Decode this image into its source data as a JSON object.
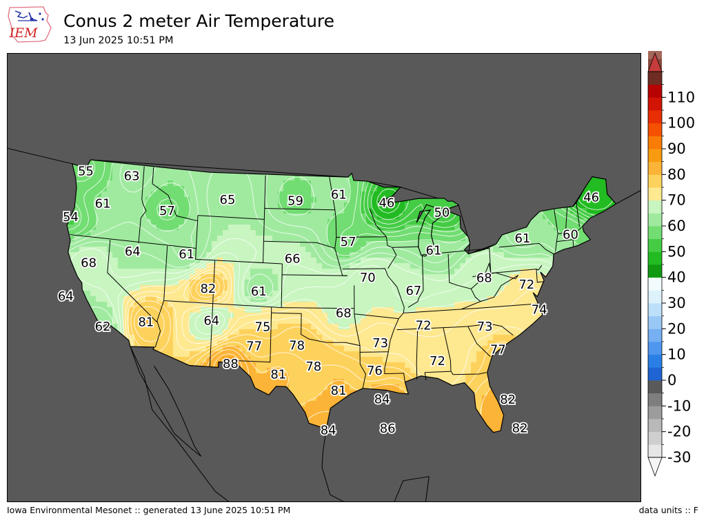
{
  "header": {
    "logo_text": "IEM",
    "title": "Conus 2 meter Air Temperature",
    "subtitle": "13 Jun 2025 10:51 PM"
  },
  "footer": {
    "left": "Iowa Environmental Mesonet :: generated 13 June 2025 10:51 PM",
    "right": "data units :: F"
  },
  "colorbar": {
    "ticks": [
      "110",
      "100",
      "90",
      "80",
      "70",
      "60",
      "50",
      "40",
      "30",
      "20",
      "10",
      "0",
      "-10",
      "-20",
      "-30"
    ],
    "min": -30,
    "max": 120,
    "step": 5,
    "colors": [
      "#e6e6e6",
      "#cfcfcf",
      "#b9b9b9",
      "#9c9c9c",
      "#7e7e7e",
      "#5a5a5a",
      "#1e64d2",
      "#2a7fe6",
      "#4f96ee",
      "#76aff2",
      "#9ac8f6",
      "#bde0fa",
      "#def2fc",
      "#f2fcff",
      "#119a11",
      "#22bb22",
      "#45cc45",
      "#72dd72",
      "#a0eaa0",
      "#c8f5c0",
      "#fee890",
      "#fdd25c",
      "#fbb437",
      "#f99b10",
      "#f97c07",
      "#f55000",
      "#e82e03",
      "#d11404",
      "#b80202",
      "#6e2c23",
      "#8a4a3c",
      "#a5675a",
      "#c28a80",
      "#e3bcb4",
      "#f6d8d2",
      "#fcc8c8",
      "#f6a2a2",
      "#e06a6a",
      "#c43c3c"
    ]
  },
  "map": {
    "background_color": "#595959",
    "labels": [
      {
        "value": "55",
        "lon": -123.2,
        "lat": 47.9
      },
      {
        "value": "63",
        "lon": -118.3,
        "lat": 48.0
      },
      {
        "value": "61",
        "lon": -121.1,
        "lat": 45.2
      },
      {
        "value": "54",
        "lon": -124.3,
        "lat": 43.6
      },
      {
        "value": "57",
        "lon": -114.3,
        "lat": 45.2
      },
      {
        "value": "65",
        "lon": -108.0,
        "lat": 46.6
      },
      {
        "value": "59",
        "lon": -100.8,
        "lat": 46.8
      },
      {
        "value": "61",
        "lon": -96.2,
        "lat": 47.4
      },
      {
        "value": "46",
        "lon": -91.1,
        "lat": 46.6
      },
      {
        "value": "50",
        "lon": -85.3,
        "lat": 45.5
      },
      {
        "value": "46",
        "lon": -69.5,
        "lat": 45.6
      },
      {
        "value": "64",
        "lon": -117.6,
        "lat": 41.2
      },
      {
        "value": "61",
        "lon": -112.0,
        "lat": 41.4
      },
      {
        "value": "66",
        "lon": -101.0,
        "lat": 41.5
      },
      {
        "value": "57",
        "lon": -95.2,
        "lat": 43.1
      },
      {
        "value": "61",
        "lon": -86.3,
        "lat": 42.1
      },
      {
        "value": "61",
        "lon": -77.0,
        "lat": 42.6
      },
      {
        "value": "60",
        "lon": -72.0,
        "lat": 42.5
      },
      {
        "value": "68",
        "lon": -122.0,
        "lat": 39.7
      },
      {
        "value": "82",
        "lon": -109.6,
        "lat": 38.4
      },
      {
        "value": "61",
        "lon": -104.4,
        "lat": 38.4
      },
      {
        "value": "70",
        "lon": -93.2,
        "lat": 39.8
      },
      {
        "value": "67",
        "lon": -88.5,
        "lat": 38.5
      },
      {
        "value": "68",
        "lon": -81.2,
        "lat": 39.3
      },
      {
        "value": "72",
        "lon": -76.9,
        "lat": 38.4
      },
      {
        "value": "64",
        "lon": -124.0,
        "lat": 36.4
      },
      {
        "value": "75",
        "lon": -103.9,
        "lat": 35.2
      },
      {
        "value": "68",
        "lon": -95.7,
        "lat": 36.6
      },
      {
        "value": "72",
        "lon": -87.6,
        "lat": 35.3
      },
      {
        "value": "73",
        "lon": -81.4,
        "lat": 34.9
      },
      {
        "value": "74",
        "lon": -75.8,
        "lat": 36.0
      },
      {
        "value": "64",
        "lon": -109.1,
        "lat": 35.5
      },
      {
        "value": "81",
        "lon": -115.7,
        "lat": 34.9
      },
      {
        "value": "77",
        "lon": -104.7,
        "lat": 33.4
      },
      {
        "value": "78",
        "lon": -100.4,
        "lat": 33.6
      },
      {
        "value": "73",
        "lon": -92.0,
        "lat": 33.8
      },
      {
        "value": "77",
        "lon": -80.2,
        "lat": 32.7
      },
      {
        "value": "62",
        "lon": -120.0,
        "lat": 34.1
      },
      {
        "value": "88",
        "lon": -107.0,
        "lat": 31.7
      },
      {
        "value": "78",
        "lon": -98.7,
        "lat": 31.7
      },
      {
        "value": "72",
        "lon": -86.3,
        "lat": 32.0
      },
      {
        "value": "76",
        "lon": -92.6,
        "lat": 31.3
      },
      {
        "value": "81",
        "lon": -102.2,
        "lat": 30.9
      },
      {
        "value": "81",
        "lon": -96.2,
        "lat": 29.5
      },
      {
        "value": "84",
        "lon": -91.9,
        "lat": 28.7
      },
      {
        "value": "82",
        "lon": -79.5,
        "lat": 28.1
      },
      {
        "value": "84",
        "lon": -97.2,
        "lat": 25.9
      },
      {
        "value": "86",
        "lon": -91.4,
        "lat": 26.0
      },
      {
        "value": "82",
        "lon": -78.5,
        "lat": 25.4
      }
    ]
  }
}
